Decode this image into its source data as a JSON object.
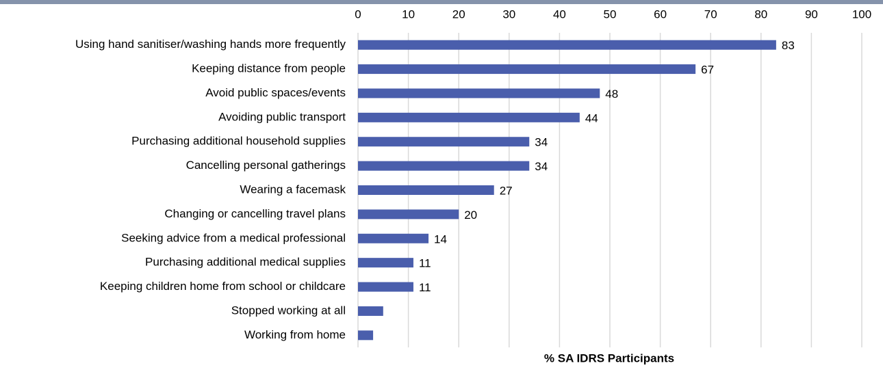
{
  "chart_data": {
    "type": "bar",
    "orientation": "horizontal",
    "categories": [
      "Using hand sanitiser/washing hands more frequently",
      "Keeping distance from people",
      "Avoid public spaces/events",
      "Avoiding public transport",
      "Purchasing additional household supplies",
      "Cancelling personal gatherings",
      "Wearing a facemask",
      "Changing or cancelling travel plans",
      "Seeking advice from a medical professional",
      "Purchasing additional medical supplies",
      "Keeping children home from school or childcare",
      "Stopped working at all",
      "Working from home"
    ],
    "values": [
      83,
      67,
      48,
      44,
      34,
      34,
      27,
      20,
      14,
      11,
      11,
      5,
      3
    ],
    "value_labels": [
      "83",
      "67",
      "48",
      "44",
      "34",
      "34",
      "27",
      "20",
      "14",
      "11",
      "11",
      null,
      null
    ],
    "color": "#4a5eac",
    "xlabel": "% SA IDRS Participants",
    "xlim": [
      0,
      100
    ],
    "xticks": [
      0,
      10,
      20,
      30,
      40,
      50,
      60,
      70,
      80,
      90,
      100
    ],
    "grid": true
  }
}
